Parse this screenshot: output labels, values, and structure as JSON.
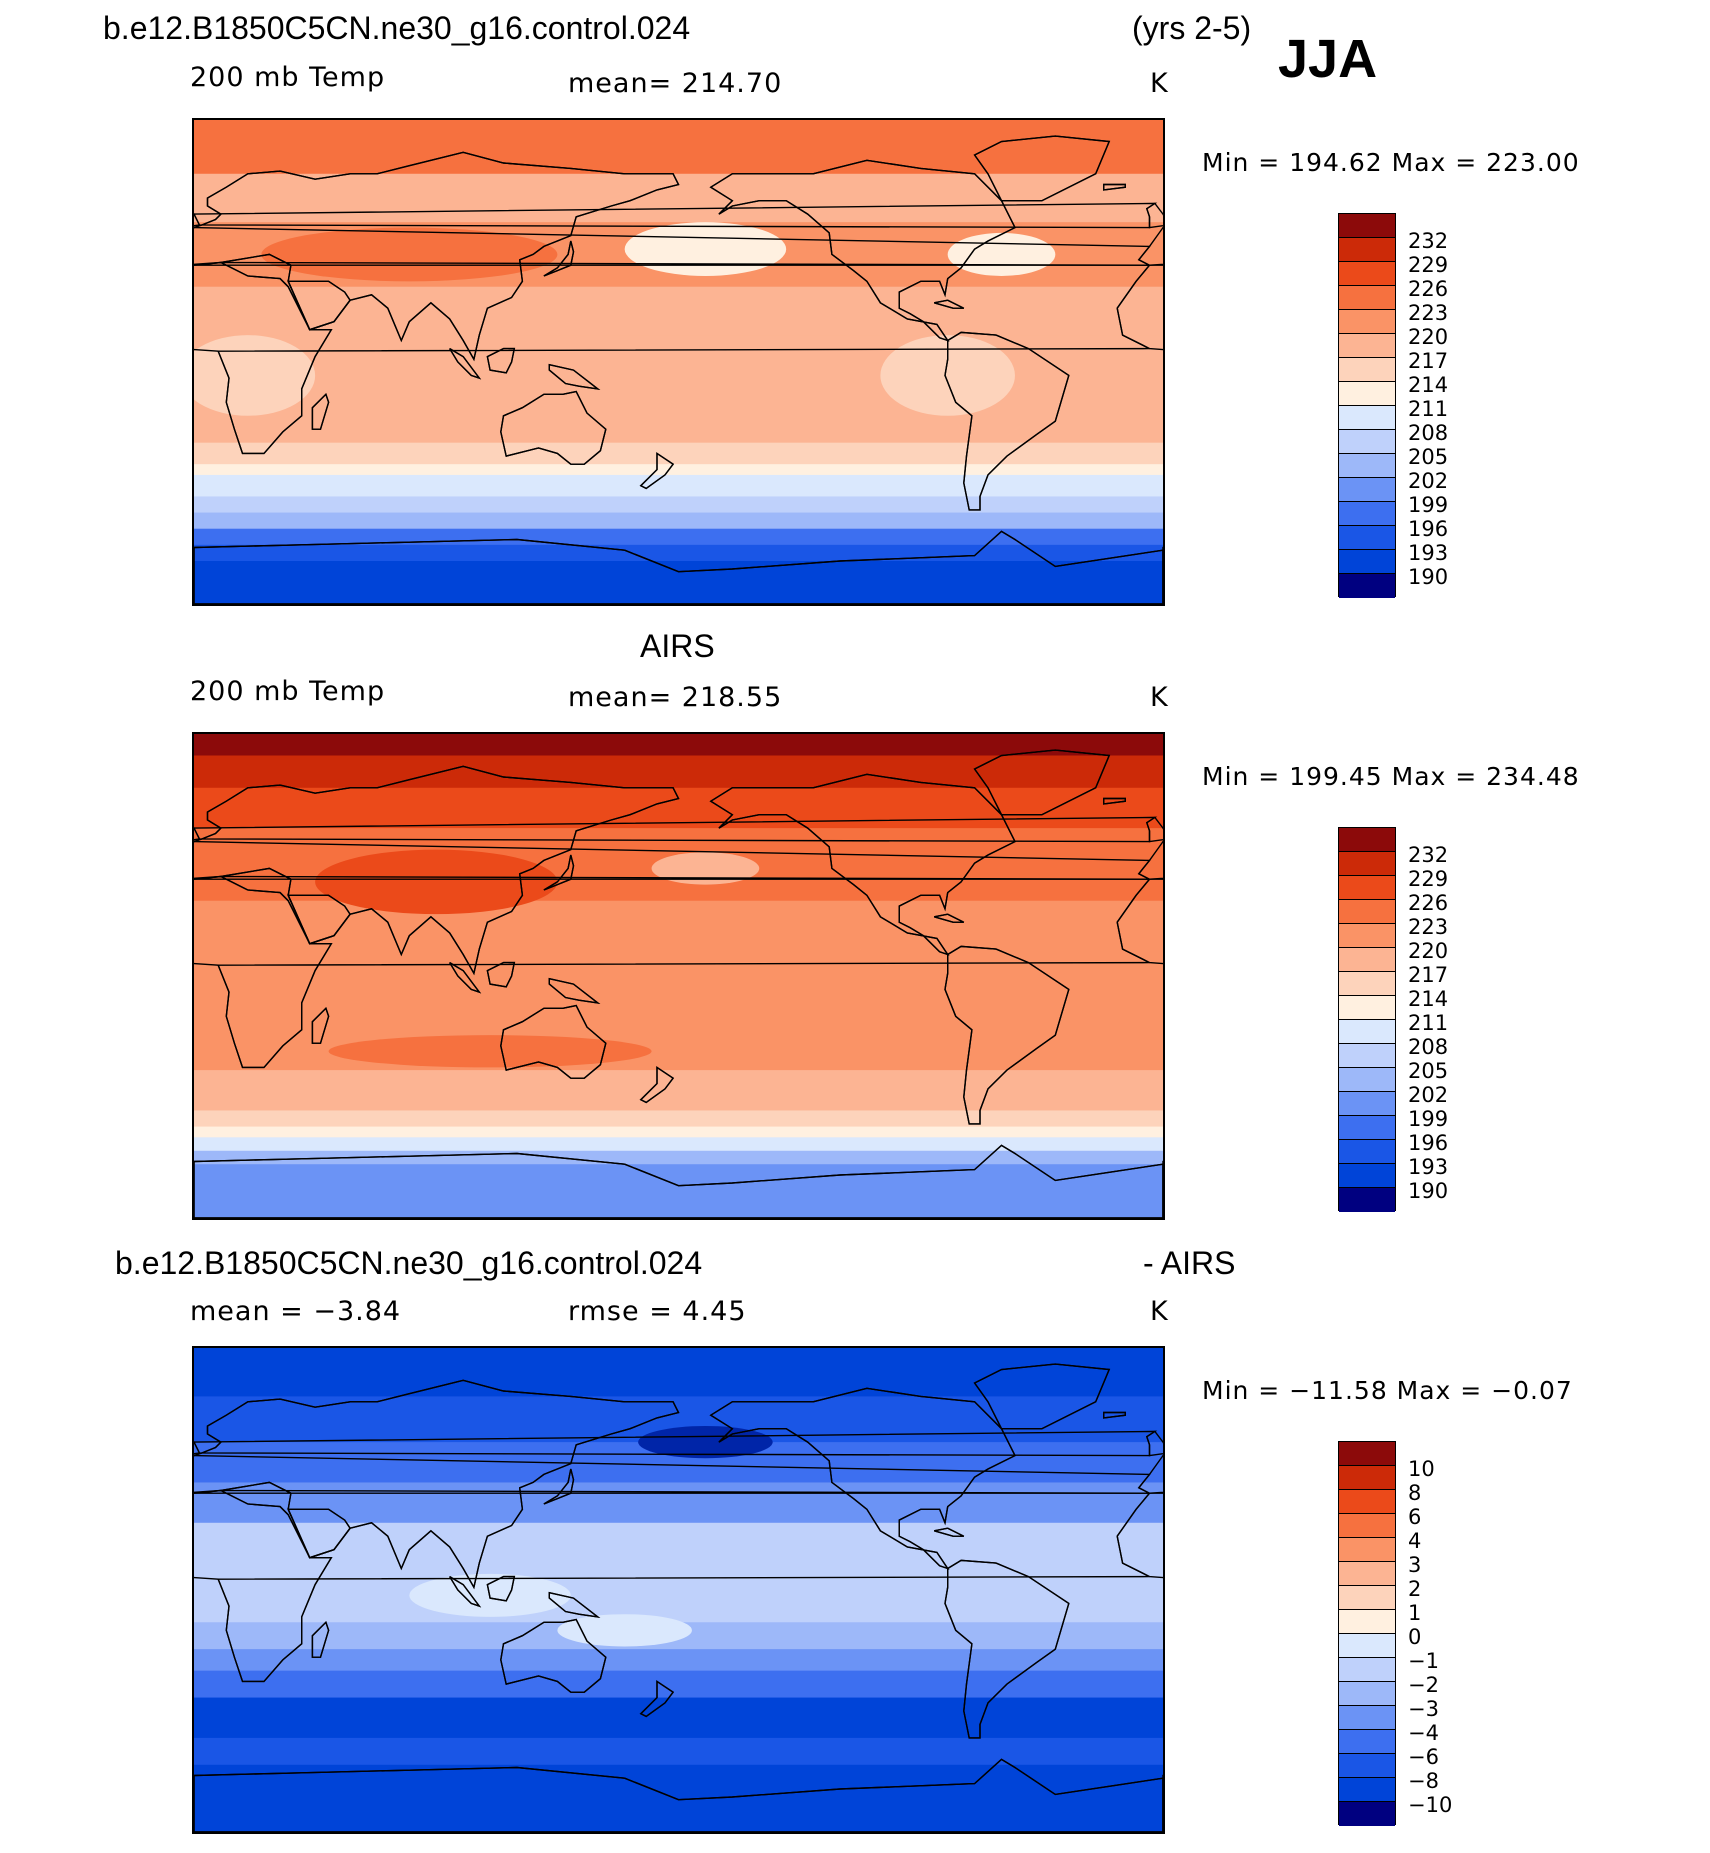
{
  "header": {
    "case_name": "b.e12.B1850C5CN.ne30_g16.control.024",
    "years": "(yrs 2-5)",
    "season": "JJA"
  },
  "palette": {
    "temp": [
      "#000080",
      "#0025a8",
      "#0044d8",
      "#1a56e6",
      "#3d6ff0",
      "#6b93f5",
      "#9db8f9",
      "#bfd1fb",
      "#dae8fd",
      "#fff0e0",
      "#fdd3bb",
      "#fcb493",
      "#fa9366",
      "#f6713f",
      "#eb4a1a",
      "#cc2a08",
      "#8c0a0a"
    ],
    "diff": [
      "#000080",
      "#0025a8",
      "#0044d8",
      "#1a56e6",
      "#3d6ff0",
      "#6b93f5",
      "#9db8f9",
      "#bfd1fb",
      "#dae8fd",
      "#fff0e0",
      "#fdd3bb",
      "#fcb493",
      "#fa9366",
      "#f6713f",
      "#eb4a1a",
      "#cc2a08",
      "#8c0a0a"
    ]
  },
  "chart_data": [
    {
      "type": "heatmap",
      "panel": "model",
      "title": "",
      "left_label": "200 mb Temp",
      "mean_label": "mean=  214.70",
      "units": "K",
      "minmax_label": "Min  =  194.62  Max  =  223.00",
      "levels": [
        "190",
        "193",
        "196",
        "199",
        "202",
        "205",
        "208",
        "211",
        "214",
        "217",
        "220",
        "223",
        "226",
        "229",
        "232"
      ],
      "bands": [
        {
          "lat_top": 90,
          "lat_bottom": 70,
          "level": 13
        },
        {
          "lat_top": 70,
          "lat_bottom": 52,
          "level": 11
        },
        {
          "lat_top": 52,
          "lat_bottom": 28,
          "level": 12
        },
        {
          "lat_top": 28,
          "lat_bottom": 10,
          "level": 11
        },
        {
          "lat_top": 10,
          "lat_bottom": -30,
          "level": 11
        },
        {
          "lat_top": -30,
          "lat_bottom": -38,
          "level": 10
        },
        {
          "lat_top": -38,
          "lat_bottom": -42,
          "level": 9
        },
        {
          "lat_top": -42,
          "lat_bottom": -50,
          "level": 8
        },
        {
          "lat_top": -50,
          "lat_bottom": -56,
          "level": 7
        },
        {
          "lat_top": -56,
          "lat_bottom": -62,
          "level": 6
        },
        {
          "lat_top": -62,
          "lat_bottom": -68,
          "level": 4
        },
        {
          "lat_top": -68,
          "lat_bottom": -74,
          "level": 3
        },
        {
          "lat_top": -74,
          "lat_bottom": -90,
          "level": 2
        }
      ],
      "blobs": [
        {
          "lon": 80,
          "lat": 40,
          "rlon": 55,
          "rlat": 10,
          "level": 13
        },
        {
          "lon": 190,
          "lat": 42,
          "rlon": 30,
          "rlat": 10,
          "level": 9
        },
        {
          "lon": 300,
          "lat": 40,
          "rlon": 20,
          "rlat": 8,
          "level": 9
        },
        {
          "lon": 20,
          "lat": -5,
          "rlon": 25,
          "rlat": 15,
          "level": 10
        },
        {
          "lon": 280,
          "lat": -5,
          "rlon": 25,
          "rlat": 15,
          "level": 10
        }
      ]
    },
    {
      "type": "heatmap",
      "panel": "obs",
      "title": "AIRS",
      "left_label": "200 mb Temp",
      "mean_label": "mean=  218.55",
      "units": "K",
      "minmax_label": "Min  =  199.45  Max  =  234.48",
      "levels": [
        "190",
        "193",
        "196",
        "199",
        "202",
        "205",
        "208",
        "211",
        "214",
        "217",
        "220",
        "223",
        "226",
        "229",
        "232"
      ],
      "bands": [
        {
          "lat_top": 90,
          "lat_bottom": 82,
          "level": 16
        },
        {
          "lat_top": 82,
          "lat_bottom": 70,
          "level": 15
        },
        {
          "lat_top": 70,
          "lat_bottom": 55,
          "level": 14
        },
        {
          "lat_top": 55,
          "lat_bottom": 28,
          "level": 13
        },
        {
          "lat_top": 28,
          "lat_bottom": -20,
          "level": 12
        },
        {
          "lat_top": -20,
          "lat_bottom": -35,
          "level": 12
        },
        {
          "lat_top": -35,
          "lat_bottom": -50,
          "level": 11
        },
        {
          "lat_top": -50,
          "lat_bottom": -56,
          "level": 10
        },
        {
          "lat_top": -56,
          "lat_bottom": -60,
          "level": 9
        },
        {
          "lat_top": -60,
          "lat_bottom": -65,
          "level": 8
        },
        {
          "lat_top": -65,
          "lat_bottom": -70,
          "level": 6
        },
        {
          "lat_top": -70,
          "lat_bottom": -90,
          "level": 5
        }
      ],
      "blobs": [
        {
          "lon": 90,
          "lat": 35,
          "rlon": 45,
          "rlat": 12,
          "level": 14
        },
        {
          "lon": 110,
          "lat": -28,
          "rlon": 60,
          "rlat": 6,
          "level": 13
        },
        {
          "lon": 190,
          "lat": 40,
          "rlon": 20,
          "rlat": 6,
          "level": 11
        }
      ]
    },
    {
      "type": "heatmap",
      "panel": "difference",
      "title": "b.e12.B1850C5CN.ne30_g16.control.024",
      "title_right": "- AIRS",
      "left_label": "mean =    −3.84",
      "mean_label": "rmse =     4.45",
      "units": "K",
      "minmax_label": "Min  =  −11.58  Max  =   −0.07",
      "levels": [
        "−10",
        "−8",
        "−6",
        "−4",
        "−3",
        "−2",
        "−1",
        "0",
        "1",
        "2",
        "3",
        "4",
        "6",
        "8",
        "10"
      ],
      "bands": [
        {
          "lat_top": 90,
          "lat_bottom": 72,
          "level": 2
        },
        {
          "lat_top": 72,
          "lat_bottom": 55,
          "level": 3
        },
        {
          "lat_top": 55,
          "lat_bottom": 40,
          "level": 4
        },
        {
          "lat_top": 40,
          "lat_bottom": 25,
          "level": 5
        },
        {
          "lat_top": 25,
          "lat_bottom": -12,
          "level": 7
        },
        {
          "lat_top": -12,
          "lat_bottom": -22,
          "level": 6
        },
        {
          "lat_top": -22,
          "lat_bottom": -30,
          "level": 5
        },
        {
          "lat_top": -30,
          "lat_bottom": -40,
          "level": 4
        },
        {
          "lat_top": -40,
          "lat_bottom": -55,
          "level": 2
        },
        {
          "lat_top": -55,
          "lat_bottom": -65,
          "level": 3
        },
        {
          "lat_top": -65,
          "lat_bottom": -90,
          "level": 2
        }
      ],
      "blobs": [
        {
          "lon": 110,
          "lat": -2,
          "rlon": 30,
          "rlat": 8,
          "level": 8
        },
        {
          "lon": 160,
          "lat": -15,
          "rlon": 25,
          "rlat": 6,
          "level": 8
        },
        {
          "lon": 190,
          "lat": 55,
          "rlon": 25,
          "rlat": 6,
          "level": 1
        }
      ]
    }
  ]
}
